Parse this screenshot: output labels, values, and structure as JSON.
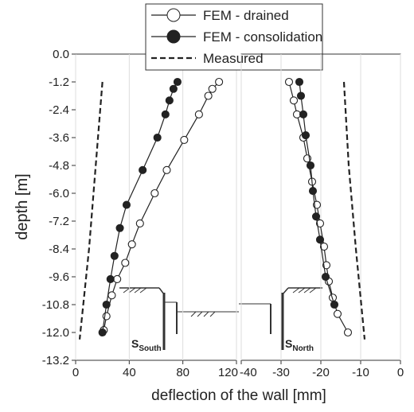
{
  "chart_data": [
    {
      "type": "line",
      "ylabel": "depth  [m]",
      "xlabel": "deflection of the wall [mm]",
      "xlim": [
        0,
        120
      ],
      "xticks": [
        0,
        40,
        80,
        120
      ],
      "ylim": [
        0,
        -13.2
      ],
      "yticks": [
        {
          "value": 0,
          "label": "0.0"
        },
        -1.2,
        -2.4,
        -3.6,
        -4.8,
        {
          "value": -6,
          "label": "-6.0"
        },
        -7.2,
        -8.4,
        -9.6,
        -10.8,
        {
          "value": -12,
          "label": "-12.0"
        },
        -13.2
      ],
      "grid": true,
      "legend": "top",
      "annotations": [
        {
          "text": "S",
          "sub": "South"
        }
      ],
      "series": [
        {
          "name": "FEM - drained",
          "marker": "open",
          "color": "#222",
          "x": [
            107,
            102,
            99,
            92,
            81,
            68,
            59,
            48,
            42,
            37,
            31,
            27,
            23,
            21
          ],
          "y": [
            -1.2,
            -1.5,
            -1.8,
            -2.6,
            -3.7,
            -5.0,
            -6.0,
            -7.3,
            -8.2,
            -9.0,
            -9.7,
            -10.4,
            -11.3,
            -11.9
          ]
        },
        {
          "name": "FEM - consolidation",
          "marker": "filled",
          "color": "#222",
          "x": [
            76,
            73,
            70,
            67,
            61,
            50,
            38,
            33,
            29,
            26,
            23,
            20
          ],
          "y": [
            -1.2,
            -1.5,
            -2.0,
            -2.6,
            -3.6,
            -5.0,
            -6.5,
            -7.5,
            -8.7,
            -9.7,
            -10.8,
            -12.0
          ]
        },
        {
          "name": "Measured",
          "marker": "dashed",
          "color": "#222",
          "x": [
            20,
            15,
            10,
            3
          ],
          "y": [
            -1.2,
            -4.8,
            -8.4,
            -12.3
          ]
        }
      ]
    },
    {
      "type": "line",
      "xlim": [
        -40,
        0
      ],
      "xticks": [
        -40,
        -30,
        -20,
        -10,
        0
      ],
      "ylim": [
        0,
        -13.2
      ],
      "grid": true,
      "annotations": [
        {
          "text": "S",
          "sub": "North"
        }
      ],
      "series": [
        {
          "marker": "open",
          "color": "#222",
          "x": [
            -28,
            -26.8,
            -26,
            -24.4,
            -23.4,
            -22.2,
            -21,
            -20.2,
            -19.2,
            -18.6,
            -18,
            -17,
            -15.8,
            -13.2
          ],
          "y": [
            -1.2,
            -2.0,
            -2.6,
            -3.6,
            -4.5,
            -5.5,
            -6.5,
            -7.3,
            -8.3,
            -9.1,
            -9.8,
            -10.5,
            -11.2,
            -12.0
          ]
        },
        {
          "marker": "filled",
          "color": "#222",
          "x": [
            -25.4,
            -25,
            -24.4,
            -23.8,
            -22.6,
            -22,
            -21.2,
            -20.2,
            -18.8,
            -16.6
          ],
          "y": [
            -1.2,
            -1.8,
            -2.6,
            -3.5,
            -4.8,
            -5.9,
            -7.0,
            -8.0,
            -9.6,
            -10.8
          ]
        },
        {
          "marker": "dashed",
          "color": "#222",
          "x": [
            -14.2,
            -13,
            -11.2,
            -9
          ],
          "y": [
            -1.2,
            -4.8,
            -8.4,
            -12.3
          ]
        }
      ]
    }
  ]
}
